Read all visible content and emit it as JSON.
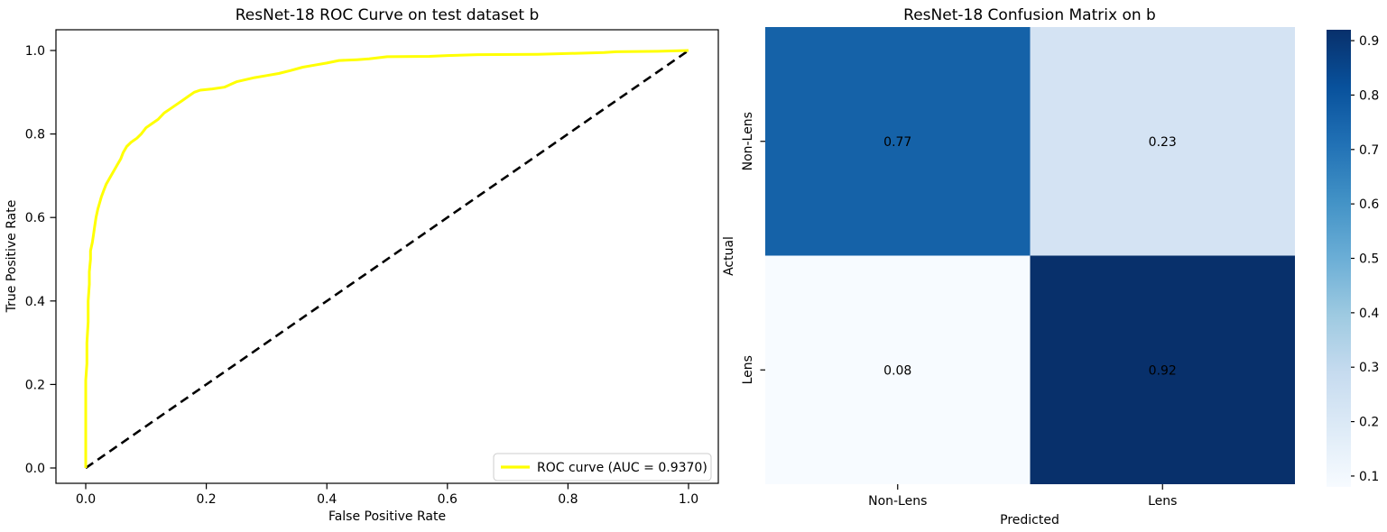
{
  "figure": {
    "background": "#ffffff"
  },
  "chart_data": [
    {
      "type": "line",
      "title": "ResNet-18 ROC Curve on test dataset b",
      "xlabel": "False Positive Rate",
      "ylabel": "True Positive Rate",
      "xlim": [
        -0.05,
        1.05
      ],
      "ylim": [
        -0.05,
        1.05
      ],
      "grid": false,
      "xticks": [
        {
          "value": 0.0,
          "label": "0.0"
        },
        {
          "value": 0.2,
          "label": "0.2"
        },
        {
          "value": 0.4,
          "label": "0.4"
        },
        {
          "value": 0.6,
          "label": "0.6"
        },
        {
          "value": 0.8,
          "label": "0.8"
        },
        {
          "value": 1.0,
          "label": "1.0"
        }
      ],
      "yticks": [
        {
          "value": 0.0,
          "label": "0.0"
        },
        {
          "value": 0.2,
          "label": "0.2"
        },
        {
          "value": 0.4,
          "label": "0.4"
        },
        {
          "value": 0.6,
          "label": "0.6"
        },
        {
          "value": 0.8,
          "label": "0.8"
        },
        {
          "value": 1.0,
          "label": "1.0"
        }
      ],
      "auc": 0.937,
      "legend": {
        "position": "lower right",
        "label": "ROC curve (AUC = 0.9370)"
      },
      "series": [
        {
          "name": "chance-diagonal",
          "color": "#000000",
          "style": "dashed",
          "width": 2.6,
          "points": [
            [
              0.0,
              0.0
            ],
            [
              1.0,
              1.0
            ]
          ]
        },
        {
          "name": "ROC curve (AUC = 0.9370)",
          "color": "#ffff00",
          "style": "solid",
          "width": 3,
          "points": [
            [
              0.0,
              0.0
            ],
            [
              0.0,
              0.21
            ],
            [
              0.002,
              0.25
            ],
            [
              0.002,
              0.3
            ],
            [
              0.004,
              0.35
            ],
            [
              0.004,
              0.4
            ],
            [
              0.006,
              0.44
            ],
            [
              0.006,
              0.47
            ],
            [
              0.008,
              0.5
            ],
            [
              0.008,
              0.52
            ],
            [
              0.011,
              0.54
            ],
            [
              0.013,
              0.56
            ],
            [
              0.015,
              0.58
            ],
            [
              0.017,
              0.6
            ],
            [
              0.02,
              0.62
            ],
            [
              0.023,
              0.635
            ],
            [
              0.026,
              0.65
            ],
            [
              0.03,
              0.665
            ],
            [
              0.034,
              0.68
            ],
            [
              0.04,
              0.695
            ],
            [
              0.046,
              0.71
            ],
            [
              0.052,
              0.725
            ],
            [
              0.058,
              0.74
            ],
            [
              0.062,
              0.755
            ],
            [
              0.068,
              0.77
            ],
            [
              0.075,
              0.78
            ],
            [
              0.085,
              0.79
            ],
            [
              0.092,
              0.8
            ],
            [
              0.1,
              0.815
            ],
            [
              0.11,
              0.825
            ],
            [
              0.12,
              0.835
            ],
            [
              0.13,
              0.85
            ],
            [
              0.14,
              0.86
            ],
            [
              0.15,
              0.87
            ],
            [
              0.16,
              0.88
            ],
            [
              0.17,
              0.89
            ],
            [
              0.18,
              0.9
            ],
            [
              0.19,
              0.905
            ],
            [
              0.21,
              0.908
            ],
            [
              0.23,
              0.912
            ],
            [
              0.25,
              0.925
            ],
            [
              0.28,
              0.935
            ],
            [
              0.3,
              0.94
            ],
            [
              0.32,
              0.945
            ],
            [
              0.34,
              0.952
            ],
            [
              0.36,
              0.96
            ],
            [
              0.38,
              0.965
            ],
            [
              0.4,
              0.97
            ],
            [
              0.42,
              0.976
            ],
            [
              0.45,
              0.978
            ],
            [
              0.47,
              0.98
            ],
            [
              0.5,
              0.985
            ],
            [
              0.57,
              0.986
            ],
            [
              0.6,
              0.988
            ],
            [
              0.65,
              0.99
            ],
            [
              0.75,
              0.991
            ],
            [
              0.86,
              0.995
            ],
            [
              0.88,
              0.997
            ],
            [
              0.95,
              0.998
            ],
            [
              1.0,
              1.0
            ]
          ]
        }
      ]
    },
    {
      "type": "heatmap",
      "title": "ResNet-18 Confusion Matrix on b",
      "xlabel": "Predicted",
      "ylabel": "Actual",
      "x_categories": [
        "Non-Lens",
        "Lens"
      ],
      "y_categories": [
        "Non-Lens",
        "Lens"
      ],
      "values": [
        [
          0.77,
          0.23
        ],
        [
          0.08,
          0.92
        ]
      ],
      "cell_labels": [
        [
          "0.77",
          "0.23"
        ],
        [
          "0.08",
          "0.92"
        ]
      ],
      "cell_colors": [
        [
          "#1562a8",
          "#d4e3f3"
        ],
        [
          "#f7fbff",
          "#08306b"
        ]
      ],
      "cell_text_colors": [
        [
          "#ffffff",
          "#262626"
        ],
        [
          "#262626",
          "#ffffff"
        ]
      ],
      "colormap": "Blues",
      "vmin": 0.08,
      "vmax": 0.92,
      "colorbar_ticks": [
        {
          "value": 0.9,
          "label": "0.9"
        },
        {
          "value": 0.8,
          "label": "0.8"
        },
        {
          "value": 0.7,
          "label": "0.7"
        },
        {
          "value": 0.6,
          "label": "0.6"
        },
        {
          "value": 0.5,
          "label": "0.5"
        },
        {
          "value": 0.4,
          "label": "0.4"
        },
        {
          "value": 0.3,
          "label": "0.3"
        },
        {
          "value": 0.2,
          "label": "0.2"
        },
        {
          "value": 0.1,
          "label": "0.1"
        }
      ]
    }
  ]
}
